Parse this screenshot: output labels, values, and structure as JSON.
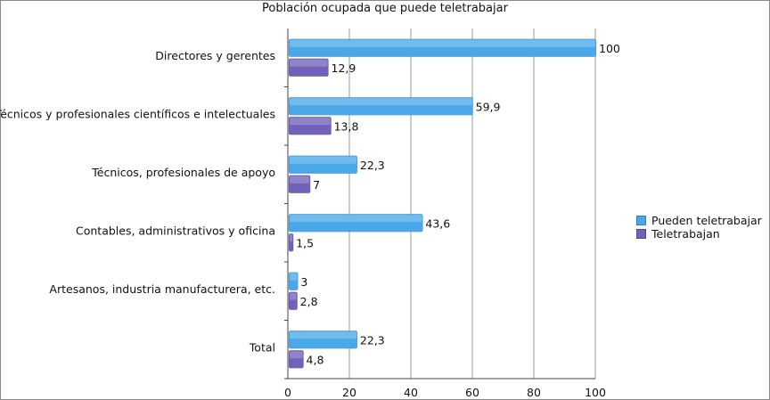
{
  "chart_data": {
    "type": "bar",
    "orientation": "horizontal",
    "title": "Población ocupada que puede teletrabajar",
    "categories": [
      "Directores y gerentes",
      "Técnicos y profesionales científicos e intelectuales",
      "Técnicos, profesionales de apoyo",
      "Contables, administrativos y oficina",
      "Artesanos, industria manufacturera, etc.",
      "Total"
    ],
    "series": [
      {
        "name": "Pueden teletrabajar",
        "color": "#4aa8e8",
        "values": [
          100,
          59.9,
          22.3,
          43.6,
          3,
          22.3
        ],
        "labels": [
          "100",
          "59,9",
          "22,3",
          "43,6",
          "3",
          "22,3"
        ]
      },
      {
        "name": "Teletrabajan",
        "color": "#7261b8",
        "values": [
          12.9,
          13.8,
          7,
          1.5,
          2.8,
          4.8
        ],
        "labels": [
          "12,9",
          "13,8",
          "7",
          "1,5",
          "2,8",
          "4,8"
        ]
      }
    ],
    "xlim": [
      0,
      100
    ],
    "xticks": [
      0,
      20,
      40,
      60,
      80,
      100
    ],
    "grid": true,
    "legend_position": "right"
  }
}
